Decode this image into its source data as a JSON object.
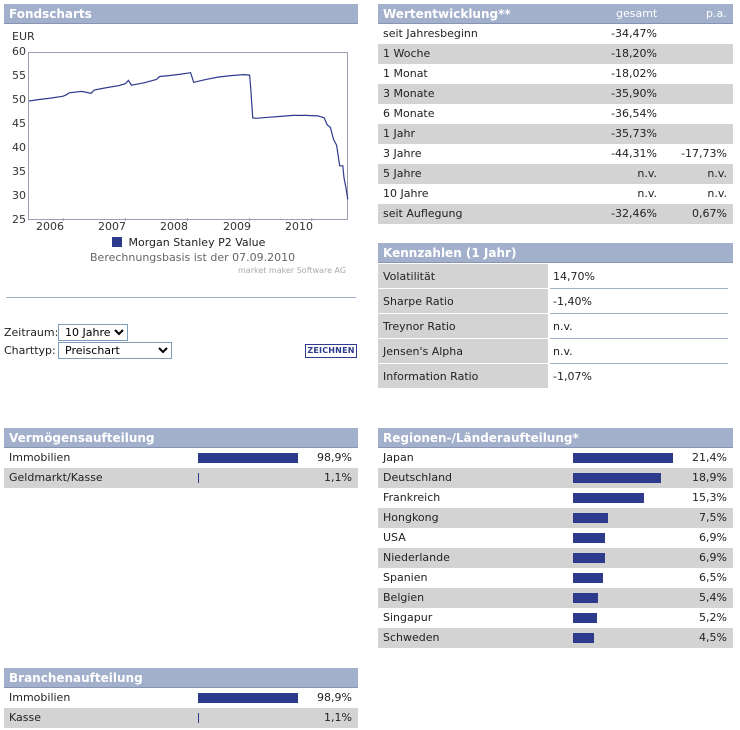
{
  "fondscharts": {
    "title": "Fondscharts",
    "currency": "EUR",
    "legend": "Morgan Stanley P2 Value",
    "basis": "Berechnungsbasis ist der 07.09.2010",
    "credit": "market maker Software AG",
    "series_color": "#2e3a8c"
  },
  "chart_data": {
    "type": "line",
    "title": "",
    "xlabel": "",
    "ylabel": "EUR",
    "ylim": [
      25,
      60
    ],
    "yticks": [
      25,
      30,
      35,
      40,
      45,
      50,
      55,
      60
    ],
    "xticks": [
      "2006",
      "2007",
      "2008",
      "2009",
      "2010"
    ],
    "xrange": [
      2005.45,
      2010.6
    ],
    "grid": false,
    "legend_position": "bottom",
    "series": [
      {
        "name": "Morgan Stanley P2 Value",
        "x": [
          2005.45,
          2005.6,
          2005.8,
          2006.0,
          2006.05,
          2006.1,
          2006.3,
          2006.45,
          2006.5,
          2006.7,
          2006.9,
          2007.0,
          2007.05,
          2007.1,
          2007.3,
          2007.5,
          2007.55,
          2007.7,
          2007.9,
          2008.0,
          2008.05,
          2008.1,
          2008.3,
          2008.5,
          2008.7,
          2008.9,
          2009.0,
          2009.02,
          2009.05,
          2009.1,
          2009.3,
          2009.5,
          2009.7,
          2009.9,
          2010.1,
          2010.15,
          2010.2,
          2010.25,
          2010.3,
          2010.35,
          2010.4,
          2010.45,
          2010.5,
          2010.52,
          2010.55,
          2010.58
        ],
        "y": [
          50.0,
          50.3,
          50.6,
          51.0,
          51.3,
          51.7,
          52.0,
          51.6,
          52.3,
          52.8,
          53.2,
          53.6,
          54.3,
          53.3,
          53.8,
          54.5,
          55.1,
          55.3,
          55.6,
          55.8,
          55.9,
          53.9,
          54.5,
          55.0,
          55.3,
          55.5,
          55.4,
          52.5,
          46.5,
          46.4,
          46.6,
          46.8,
          47.0,
          47.0,
          46.9,
          46.7,
          46.5,
          45.0,
          44.5,
          42.0,
          40.8,
          36.5,
          36.5,
          34.0,
          32.0,
          29.5
        ]
      }
    ]
  },
  "controls": {
    "zeitraum_label": "Zeitraum:",
    "zeitraum_value": "10 Jahre",
    "charttyp_label": "Charttyp:",
    "charttyp_value": "Preischart",
    "button_label": "ZEICHNEN"
  },
  "wertentwicklung": {
    "title": "Wertentwicklung**",
    "col_gesamt": "gesamt",
    "col_pa": "p.a.",
    "rows": [
      {
        "label": "seit Jahresbeginn",
        "gesamt": "-34,47%",
        "pa": ""
      },
      {
        "label": "1 Woche",
        "gesamt": "-18,20%",
        "pa": ""
      },
      {
        "label": "1 Monat",
        "gesamt": "-18,02%",
        "pa": ""
      },
      {
        "label": "3 Monate",
        "gesamt": "-35,90%",
        "pa": ""
      },
      {
        "label": "6 Monate",
        "gesamt": "-36,54%",
        "pa": ""
      },
      {
        "label": "1 Jahr",
        "gesamt": "-35,73%",
        "pa": ""
      },
      {
        "label": "3 Jahre",
        "gesamt": "-44,31%",
        "pa": "-17,73%"
      },
      {
        "label": "5 Jahre",
        "gesamt": "n.v.",
        "pa": "n.v."
      },
      {
        "label": "10 Jahre",
        "gesamt": "n.v.",
        "pa": "n.v."
      },
      {
        "label": "seit Auflegung",
        "gesamt": "-32,46%",
        "pa": "0,67%"
      }
    ]
  },
  "kennzahlen": {
    "title": "Kennzahlen (1 Jahr)",
    "rows": [
      {
        "label": "Volatilität",
        "value": "14,70%"
      },
      {
        "label": "Sharpe Ratio",
        "value": "-1,40%"
      },
      {
        "label": "Treynor Ratio",
        "value": "n.v."
      },
      {
        "label": "Jensen's Alpha",
        "value": "n.v."
      },
      {
        "label": "Information Ratio",
        "value": "-1,07%"
      }
    ]
  },
  "vermoegen": {
    "title": "Vermögensaufteilung",
    "rows": [
      {
        "label": "Immobilien",
        "value": "98,9%",
        "pct": 98.9
      },
      {
        "label": "Geldmarkt/Kasse",
        "value": "1,1%",
        "pct": 1.1
      }
    ]
  },
  "branchen": {
    "title": "Branchenaufteilung",
    "rows": [
      {
        "label": "Immobilien",
        "value": "98,9%",
        "pct": 98.9
      },
      {
        "label": "Kasse",
        "value": "1,1%",
        "pct": 1.1
      }
    ]
  },
  "regionen": {
    "title": "Regionen-/Länderaufteilung*",
    "rows": [
      {
        "label": "Japan",
        "value": "21,4%",
        "pct": 21.4
      },
      {
        "label": "Deutschland",
        "value": "18,9%",
        "pct": 18.9
      },
      {
        "label": "Frankreich",
        "value": "15,3%",
        "pct": 15.3
      },
      {
        "label": "Hongkong",
        "value": "7,5%",
        "pct": 7.5
      },
      {
        "label": "USA",
        "value": "6,9%",
        "pct": 6.9
      },
      {
        "label": "Niederlande",
        "value": "6,9%",
        "pct": 6.9
      },
      {
        "label": "Spanien",
        "value": "6,5%",
        "pct": 6.5
      },
      {
        "label": "Belgien",
        "value": "5,4%",
        "pct": 5.4
      },
      {
        "label": "Singapur",
        "value": "5,2%",
        "pct": 5.2
      },
      {
        "label": "Schweden",
        "value": "4,5%",
        "pct": 4.5
      }
    ]
  }
}
